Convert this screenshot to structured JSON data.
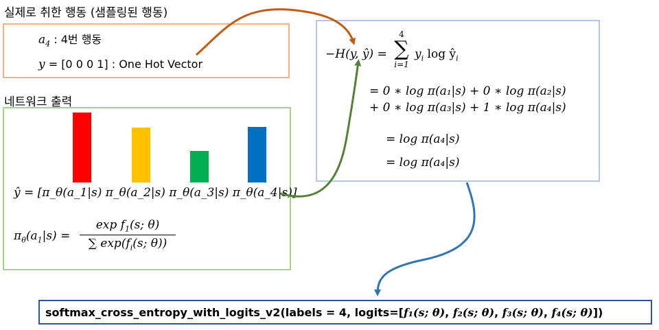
{
  "actual_action": {
    "heading": "실제로 취한 행동 (샘플링된 행동)",
    "action_symbol": "a",
    "action_subscript": "4",
    "action_desc": " : 4번 행동",
    "y_symbol": "y",
    "y_value": " = [0 0 0 1] : One Hot Vector"
  },
  "network_output": {
    "heading": "네트워크 출력",
    "bars": [
      {
        "label": "π_θ(a_1|s)",
        "value": 1.0,
        "color": "#ff0000"
      },
      {
        "label": "π_θ(a_2|s)",
        "value": 0.78,
        "color": "#ffc000"
      },
      {
        "label": "π_θ(a_3|s)",
        "value": 0.45,
        "color": "#00b050"
      },
      {
        "label": "π_θ(a_4|s)",
        "value": 0.79,
        "color": "#0070c0"
      }
    ],
    "yhat_prefix": "ŷ = [",
    "yhat_suffix": "]",
    "pi_lhs": "π",
    "pi_sub": "θ",
    "pi_arg": "(a",
    "pi_arg_sub": "1",
    "pi_arg_end": "|s) =",
    "frac_num": "exp f",
    "frac_num_sub": "1",
    "frac_num_end": "(s; θ)",
    "frac_den": "∑ exp(f",
    "frac_den_sub": "i",
    "frac_den_end": "(s; θ))"
  },
  "cross_entropy": {
    "lhs": "−H(y, ŷ) =",
    "sum_top": "4",
    "sum_bottom": "i=1",
    "sum_body": "y",
    "sum_body_sub": "i",
    "sum_log": " log ŷ",
    "sum_log_sub": "i",
    "line1": "= 0 ∗ log π(a₁|s) + 0 ∗ log π(a₂|s)",
    "line2": "+ 0 ∗ log π(a₃|s) + 1 ∗ log π(a₄|s)",
    "line3": "= log π(a₄|s)",
    "line4": "= log π(a₄|s)"
  },
  "code_call": {
    "prefix": "softmax_cross_entropy_with_logits_v2(labels = 4, logits=[",
    "f1": "f₁(s; θ)",
    "f2": "f₂(s; θ)",
    "f3": "f₃(s; θ)",
    "f4": "f₄(s; θ)",
    "sep": ", ",
    "suffix": "])"
  },
  "colors": {
    "actual_box_border": "#f4b183",
    "network_box_border": "#a9d18e",
    "entropy_box_border": "#b4c7e7",
    "code_box_border": "#2e5597",
    "arrow_orange": "#c55a11",
    "arrow_green": "#548235",
    "arrow_blue": "#2e75b6"
  }
}
